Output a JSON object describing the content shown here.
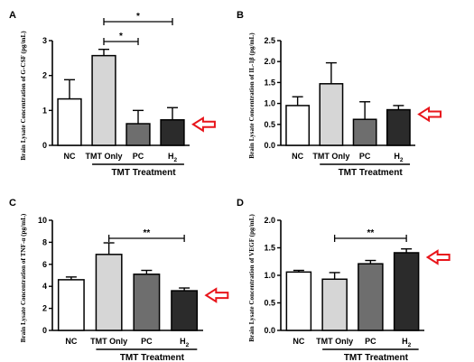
{
  "figure": {
    "arrow_color": "#e8151b",
    "bar_colors": [
      "#ffffff",
      "#d6d6d6",
      "#6e6e6e",
      "#2b2b2b"
    ]
  },
  "chart_data": [
    {
      "type": "bar",
      "panel_label": "A",
      "categories": [
        "NC",
        "TMT Only",
        "PC",
        "H2"
      ],
      "values": [
        1.33,
        2.57,
        0.62,
        0.73
      ],
      "errors": [
        0.55,
        0.18,
        0.38,
        0.35
      ],
      "ylabel": "Brain Lysate Concentration of G-CSF (pg/mL)",
      "ylim": [
        0,
        3
      ],
      "yticks": [
        "0",
        "1",
        "2",
        "3"
      ],
      "group_label": "TMT Treatment",
      "significance": [
        {
          "from": 1,
          "to": 2,
          "label": "*"
        },
        {
          "from": 1,
          "to": 3,
          "label": "*"
        }
      ],
      "arrow_at": 3
    },
    {
      "type": "bar",
      "panel_label": "B",
      "categories": [
        "NC",
        "TMT Only",
        "PC",
        "H2"
      ],
      "values": [
        0.95,
        1.47,
        0.62,
        0.85
      ],
      "errors": [
        0.21,
        0.5,
        0.42,
        0.1
      ],
      "ylabel": "Brain Lysate Concentration of IL-1β (pg/mL)",
      "ylim": [
        0,
        2.5
      ],
      "yticks": [
        "0.0",
        "0.5",
        "1.0",
        "1.5",
        "2.0",
        "2.5"
      ],
      "group_label": "TMT Treatment",
      "significance": [],
      "arrow_at": 3
    },
    {
      "type": "bar",
      "panel_label": "C",
      "categories": [
        "NC",
        "TMT Only",
        "PC",
        "H2"
      ],
      "values": [
        4.6,
        6.9,
        5.1,
        3.6
      ],
      "errors": [
        0.25,
        1.05,
        0.35,
        0.25
      ],
      "ylabel": "Brain Lysate Concentration of TNF-α (pg/mL)",
      "ylim": [
        0,
        10
      ],
      "yticks": [
        "0",
        "2",
        "4",
        "6",
        "8",
        "10"
      ],
      "group_label": "TMT Treatment",
      "significance": [
        {
          "from": 1,
          "to": 3,
          "label": "**"
        }
      ],
      "arrow_at": 3
    },
    {
      "type": "bar",
      "panel_label": "D",
      "categories": [
        "NC",
        "TMT Only",
        "PC",
        "H2"
      ],
      "values": [
        1.06,
        0.93,
        1.21,
        1.41
      ],
      "errors": [
        0.03,
        0.12,
        0.06,
        0.07
      ],
      "ylabel": "Brain Lysate Concentration of VEGF (pg/mL)",
      "ylim": [
        0,
        2
      ],
      "yticks": [
        "0.0",
        "0.5",
        "1.0",
        "1.5",
        "2.0"
      ],
      "group_label": "TMT Treatment",
      "significance": [
        {
          "from": 1,
          "to": 3,
          "label": "**"
        }
      ],
      "arrow_at": 3
    }
  ]
}
